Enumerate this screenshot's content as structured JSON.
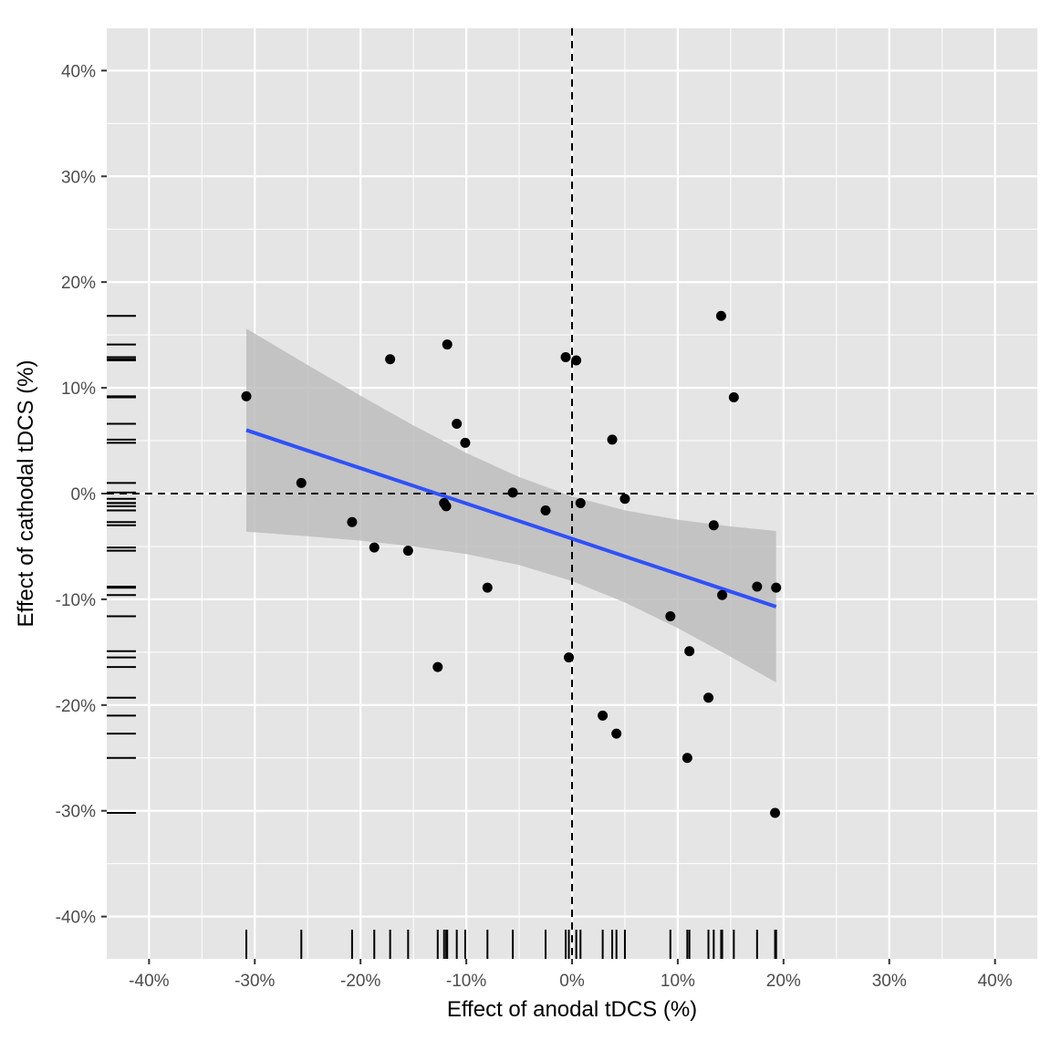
{
  "chart_data": {
    "type": "scatter",
    "title": "",
    "xlabel": "Effect of anodal tDCS (%)",
    "ylabel": "Effect of cathodal tDCS (%)",
    "xlim": [
      -44,
      44
    ],
    "ylim": [
      -44,
      44
    ],
    "xticks": [
      -40,
      -30,
      -20,
      -10,
      0,
      10,
      20,
      30,
      40
    ],
    "yticks": [
      -40,
      -30,
      -20,
      -10,
      0,
      10,
      20,
      30,
      40
    ],
    "xtick_labels": [
      "-40%",
      "-30%",
      "-20%",
      "-10%",
      "0%",
      "10%",
      "20%",
      "30%",
      "40%"
    ],
    "ytick_labels": [
      "-40%",
      "-30%",
      "-20%",
      "-10%",
      "0%",
      "10%",
      "20%",
      "30%",
      "40%"
    ],
    "grid": true,
    "reference_lines": {
      "x": 0,
      "y": 0,
      "style": "dashed"
    },
    "rug": true,
    "points": [
      [
        -30.8,
        9.2
      ],
      [
        -25.6,
        1.0
      ],
      [
        -20.8,
        -2.7
      ],
      [
        -18.7,
        -5.1
      ],
      [
        -17.2,
        12.7
      ],
      [
        -15.5,
        -5.4
      ],
      [
        -12.7,
        -16.4
      ],
      [
        -12.1,
        -0.9
      ],
      [
        -11.9,
        -1.2
      ],
      [
        -11.8,
        14.1
      ],
      [
        -10.9,
        6.6
      ],
      [
        -10.1,
        4.8
      ],
      [
        -8.0,
        -8.9
      ],
      [
        -5.6,
        0.1
      ],
      [
        -2.5,
        -1.6
      ],
      [
        -0.6,
        12.9
      ],
      [
        -0.3,
        -15.5
      ],
      [
        0.4,
        12.6
      ],
      [
        0.8,
        -0.9
      ],
      [
        2.9,
        -21.0
      ],
      [
        3.8,
        5.1
      ],
      [
        4.2,
        -22.7
      ],
      [
        5.0,
        -0.5
      ],
      [
        9.3,
        -11.6
      ],
      [
        10.9,
        -25.0
      ],
      [
        11.1,
        -14.9
      ],
      [
        12.9,
        -19.3
      ],
      [
        13.4,
        -3.0
      ],
      [
        14.1,
        16.8
      ],
      [
        14.2,
        -9.6
      ],
      [
        15.3,
        9.1
      ],
      [
        17.5,
        -8.8
      ],
      [
        19.2,
        -30.2
      ],
      [
        19.3,
        -8.9
      ]
    ],
    "fit": {
      "method": "linear",
      "x": [
        -30.8,
        -25,
        -20,
        -15,
        -10,
        -5,
        0,
        5,
        10,
        15,
        19.3
      ],
      "y": [
        6.0,
        4.06,
        2.4,
        0.73,
        -0.94,
        -2.6,
        -4.27,
        -5.94,
        -7.6,
        -9.27,
        -10.7
      ],
      "lower": [
        -3.6,
        -4.03,
        -4.45,
        -4.99,
        -5.72,
        -6.76,
        -8.27,
        -10.3,
        -12.73,
        -15.43,
        -17.86
      ],
      "upper": [
        15.6,
        12.15,
        9.25,
        6.45,
        3.84,
        1.56,
        -0.27,
        -1.58,
        -2.47,
        -3.11,
        -3.54
      ]
    },
    "colors": {
      "panel": "#e5e5e5",
      "grid": "#ffffff",
      "points": "#000000",
      "fit_line": "#3050f8",
      "ribbon": "#bdbdbd"
    }
  }
}
